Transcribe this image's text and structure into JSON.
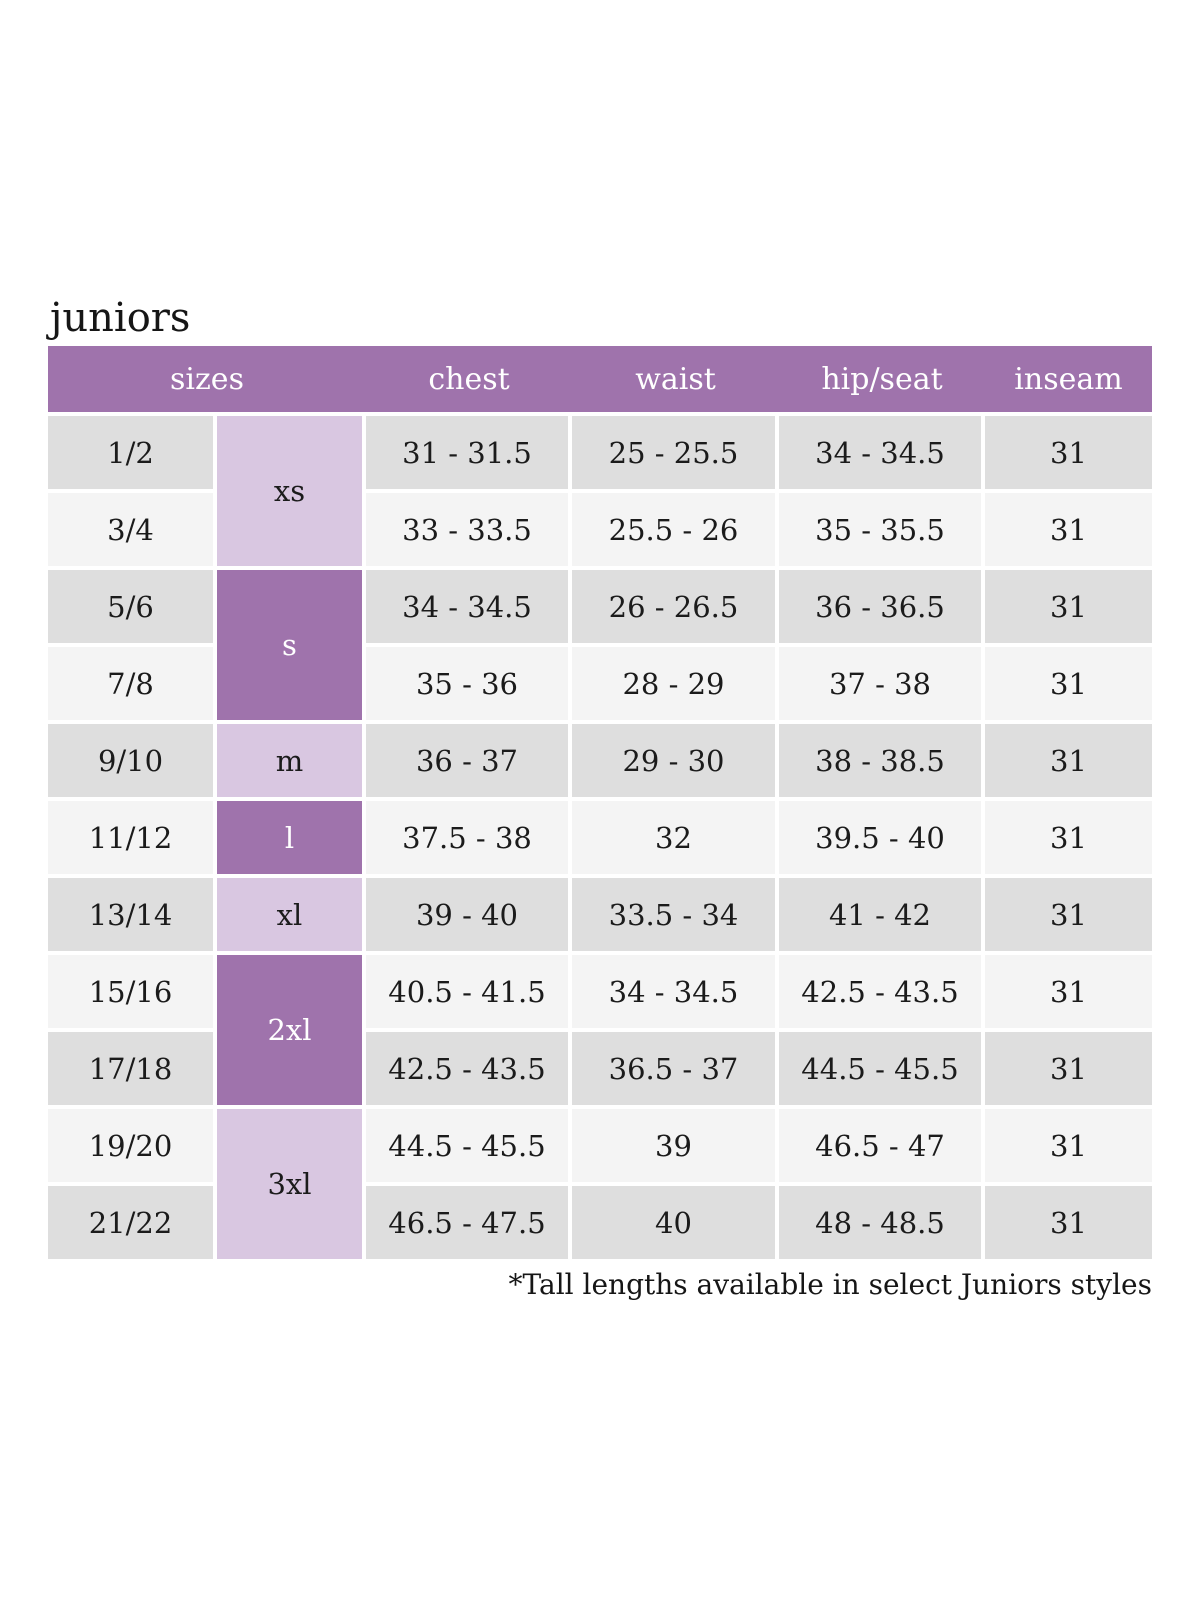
{
  "title": "juniors",
  "table": {
    "columns": [
      "sizes",
      "chest",
      "waist",
      "hip/seat",
      "inseam"
    ],
    "size_groups": [
      {
        "label": "xs",
        "rows": [
          0,
          1
        ],
        "shade": "light"
      },
      {
        "label": "s",
        "rows": [
          2,
          3
        ],
        "shade": "dark"
      },
      {
        "label": "m",
        "rows": [
          4
        ],
        "shade": "light"
      },
      {
        "label": "l",
        "rows": [
          5
        ],
        "shade": "dark"
      },
      {
        "label": "xl",
        "rows": [
          6
        ],
        "shade": "light"
      },
      {
        "label": "2xl",
        "rows": [
          7,
          8
        ],
        "shade": "dark"
      },
      {
        "label": "3xl",
        "rows": [
          9,
          10
        ],
        "shade": "light"
      }
    ],
    "rows": [
      {
        "size": "1/2",
        "chest": "31 - 31.5",
        "waist": "25 - 25.5",
        "hip_seat": "34 - 34.5",
        "inseam": "31"
      },
      {
        "size": "3/4",
        "chest": "33 - 33.5",
        "waist": "25.5 - 26",
        "hip_seat": "35 - 35.5",
        "inseam": "31"
      },
      {
        "size": "5/6",
        "chest": "34 - 34.5",
        "waist": "26 - 26.5",
        "hip_seat": "36 - 36.5",
        "inseam": "31"
      },
      {
        "size": "7/8",
        "chest": "35 - 36",
        "waist": "28 - 29",
        "hip_seat": "37 - 38",
        "inseam": "31"
      },
      {
        "size": "9/10",
        "chest": "36 - 37",
        "waist": "29 - 30",
        "hip_seat": "38 - 38.5",
        "inseam": "31"
      },
      {
        "size": "11/12",
        "chest": "37.5 - 38",
        "waist": "32",
        "hip_seat": "39.5 - 40",
        "inseam": "31"
      },
      {
        "size": "13/14",
        "chest": "39 - 40",
        "waist": "33.5 - 34",
        "hip_seat": "41 - 42",
        "inseam": "31"
      },
      {
        "size": "15/16",
        "chest": "40.5 - 41.5",
        "waist": "34 - 34.5",
        "hip_seat": "42.5 - 43.5",
        "inseam": "31"
      },
      {
        "size": "17/18",
        "chest": "42.5 - 43.5",
        "waist": "36.5 - 37",
        "hip_seat": "44.5 - 45.5",
        "inseam": "31"
      },
      {
        "size": "19/20",
        "chest": "44.5 - 45.5",
        "waist": "39",
        "hip_seat": "46.5 - 47",
        "inseam": "31"
      },
      {
        "size": "21/22",
        "chest": "46.5 - 47.5",
        "waist": "40",
        "hip_seat": "48 - 48.5",
        "inseam": "31"
      }
    ]
  },
  "footnote": "*Tall lengths available in select Juniors styles",
  "colors": {
    "header_purple": "#9f73ac",
    "group_dark_purple": "#9f73ac",
    "group_light_purple": "#d9c7e1",
    "row_dark_gray": "#dedede",
    "row_light_gray": "#f4f4f4",
    "text_dark": "#1b1b1b",
    "text_white": "#ffffff",
    "background": "#ffffff"
  }
}
